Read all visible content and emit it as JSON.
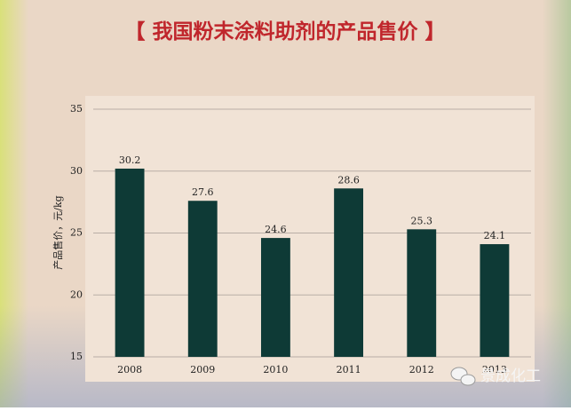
{
  "chart_data": {
    "type": "bar",
    "title": "【 我国粉末涂料助剂的产品售价 】",
    "y_label": "产品售价，元/kg",
    "categories": [
      "2008",
      "2009",
      "2010",
      "2011",
      "2012",
      "2013"
    ],
    "values": [
      30.2,
      27.6,
      24.6,
      28.6,
      25.3,
      24.1
    ],
    "color": "#0e3a36",
    "ylim": [
      15,
      35
    ],
    "yticks": [
      15,
      20,
      25,
      30,
      35
    ],
    "grid": true,
    "data_labels": true
  },
  "watermark": "景成化工"
}
